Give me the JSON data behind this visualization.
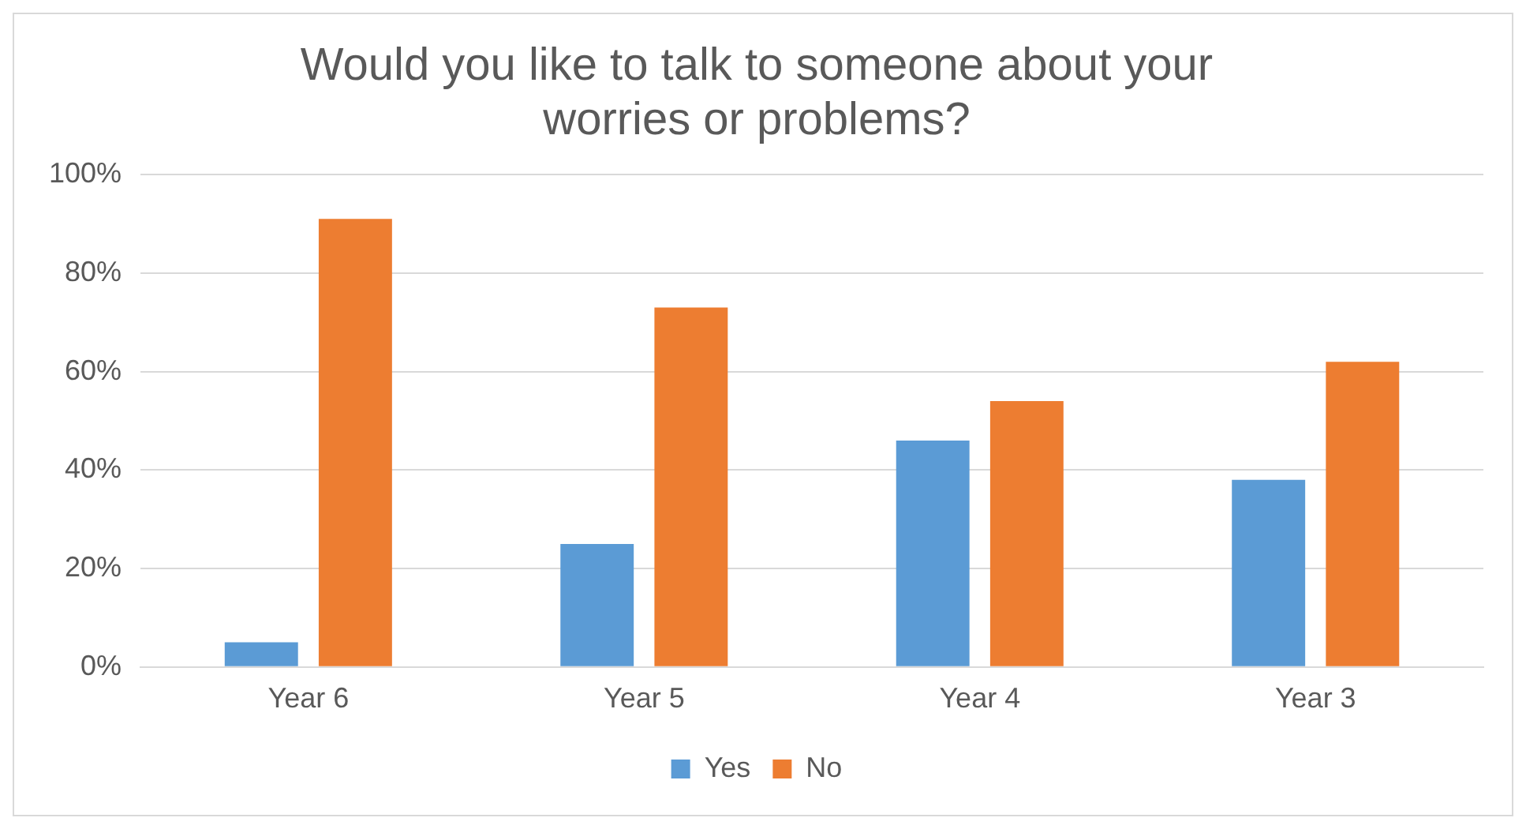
{
  "chart_data": {
    "type": "bar",
    "title": "Would you like to talk to someone about your worries or problems?",
    "categories": [
      "Year 6",
      "Year 5",
      "Year 4",
      "Year 3"
    ],
    "series": [
      {
        "name": "Yes",
        "color": "#5b9bd5",
        "values": [
          5,
          25,
          46,
          38
        ]
      },
      {
        "name": "No",
        "color": "#ed7d31",
        "values": [
          91,
          73,
          54,
          62
        ]
      }
    ],
    "ylim": [
      0,
      100
    ],
    "yticks": [
      {
        "value": 0,
        "label": "0%"
      },
      {
        "value": 20,
        "label": "20%"
      },
      {
        "value": 40,
        "label": "40%"
      },
      {
        "value": 60,
        "label": "60%"
      },
      {
        "value": 80,
        "label": "80%"
      },
      {
        "value": 100,
        "label": "100%"
      }
    ],
    "grid": "y",
    "legend": "bottom"
  }
}
